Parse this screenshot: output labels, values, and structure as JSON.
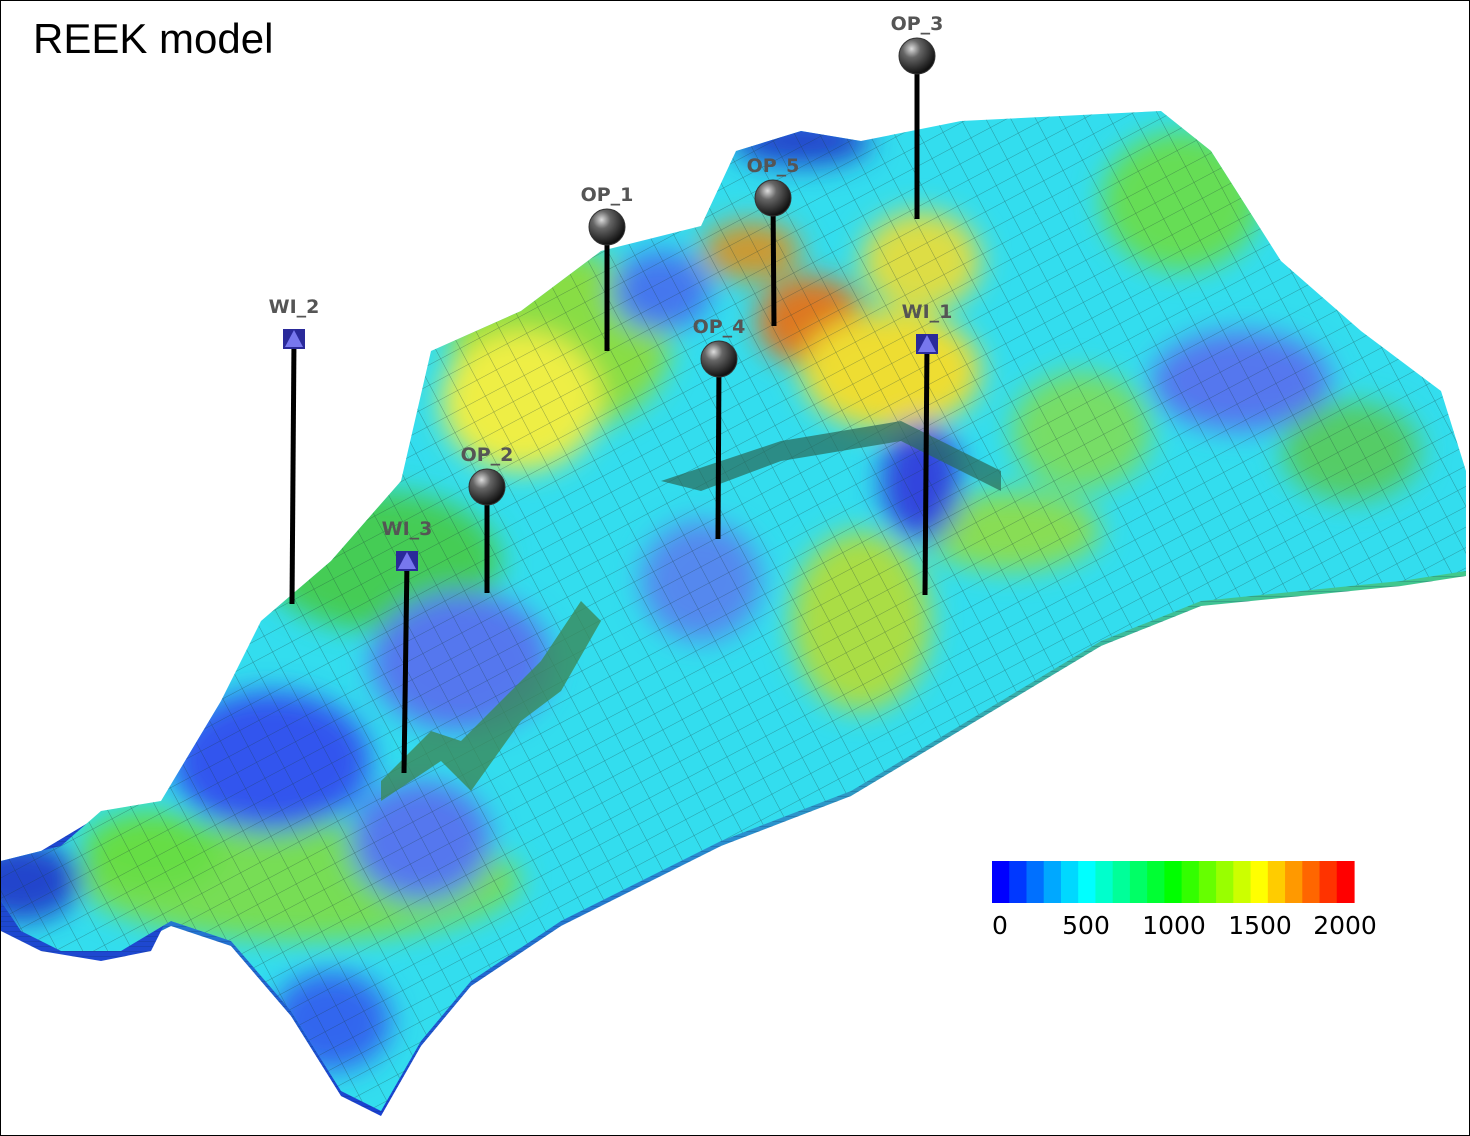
{
  "title": "REEK model",
  "wells": {
    "producers": [
      {
        "name": "OP_1"
      },
      {
        "name": "OP_2"
      },
      {
        "name": "OP_3"
      },
      {
        "name": "OP_4"
      },
      {
        "name": "OP_5"
      }
    ],
    "injectors": [
      {
        "name": "WI_1"
      },
      {
        "name": "WI_2"
      },
      {
        "name": "WI_3"
      }
    ],
    "producer_marker_color": "#333333",
    "injector_marker_color": "#7777ee"
  },
  "colorbar": {
    "ticks": [
      "0",
      "500",
      "1000",
      "1500",
      "2000"
    ],
    "colors": [
      "#0000ff",
      "#0038ff",
      "#0070ff",
      "#00a8ff",
      "#00d8ff",
      "#00ffff",
      "#00ffcc",
      "#00ff99",
      "#00ff66",
      "#00ff33",
      "#00ff00",
      "#33ff00",
      "#66ff00",
      "#99ff00",
      "#ccff00",
      "#ffff00",
      "#ffcc00",
      "#ff9900",
      "#ff6600",
      "#ff3300",
      "#ff0000"
    ]
  }
}
